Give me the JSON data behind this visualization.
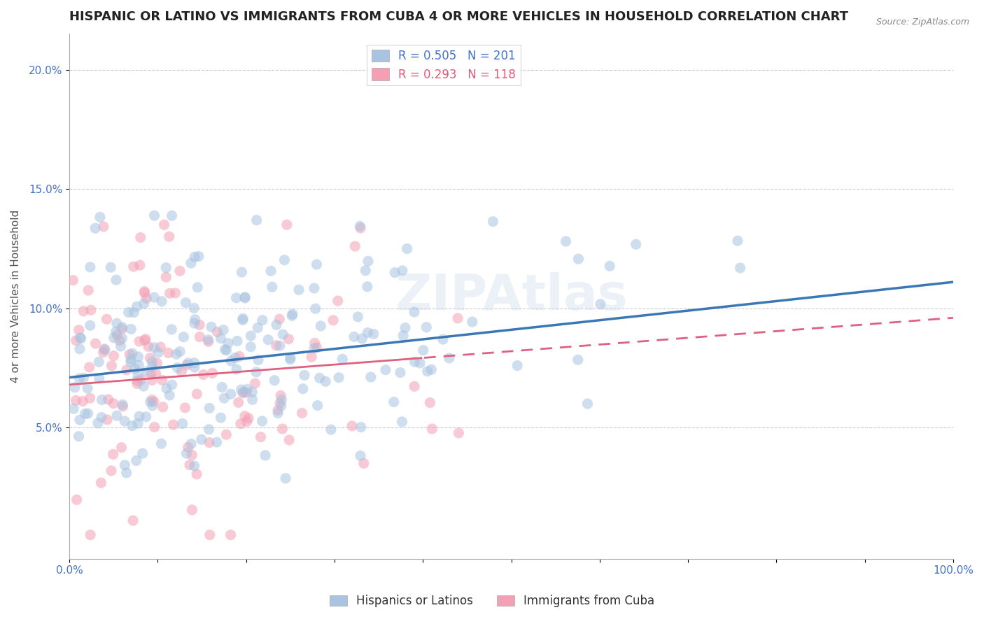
{
  "title": "HISPANIC OR LATINO VS IMMIGRANTS FROM CUBA 4 OR MORE VEHICLES IN HOUSEHOLD CORRELATION CHART",
  "source_text": "Source: ZipAtlas.com",
  "ylabel": "4 or more Vehicles in Household",
  "xlim": [
    0,
    1.0
  ],
  "ylim": [
    -0.005,
    0.215
  ],
  "x_ticks": [
    0.0,
    0.1,
    0.2,
    0.3,
    0.4,
    0.5,
    0.6,
    0.7,
    0.8,
    0.9,
    1.0
  ],
  "x_tick_labels": [
    "0.0%",
    "",
    "",
    "",
    "",
    "",
    "",
    "",
    "",
    "",
    "100.0%"
  ],
  "y_ticks": [
    0.05,
    0.1,
    0.15,
    0.2
  ],
  "y_tick_labels": [
    "5.0%",
    "10.0%",
    "15.0%",
    "20.0%"
  ],
  "grid_color": "#cccccc",
  "background_color": "#ffffff",
  "series1_color": "#a8c4e0",
  "series2_color": "#f4a0b4",
  "line1_color": "#3a78b5",
  "line2_color": "#e06080",
  "R1": 0.505,
  "N1": 201,
  "R2": 0.293,
  "N2": 118,
  "legend_label1": "Hispanics or Latinos",
  "legend_label2": "Immigrants from Cuba",
  "watermark": "ZIPAtlas",
  "title_fontsize": 13,
  "label_fontsize": 11,
  "tick_fontsize": 11,
  "legend_fontsize": 12,
  "dot_size": 120,
  "dot_alpha": 0.55,
  "seed1": 42,
  "seed2": 99,
  "line1_intercept": 0.071,
  "line1_slope": 0.04,
  "line2_intercept": 0.068,
  "line2_slope": 0.028
}
